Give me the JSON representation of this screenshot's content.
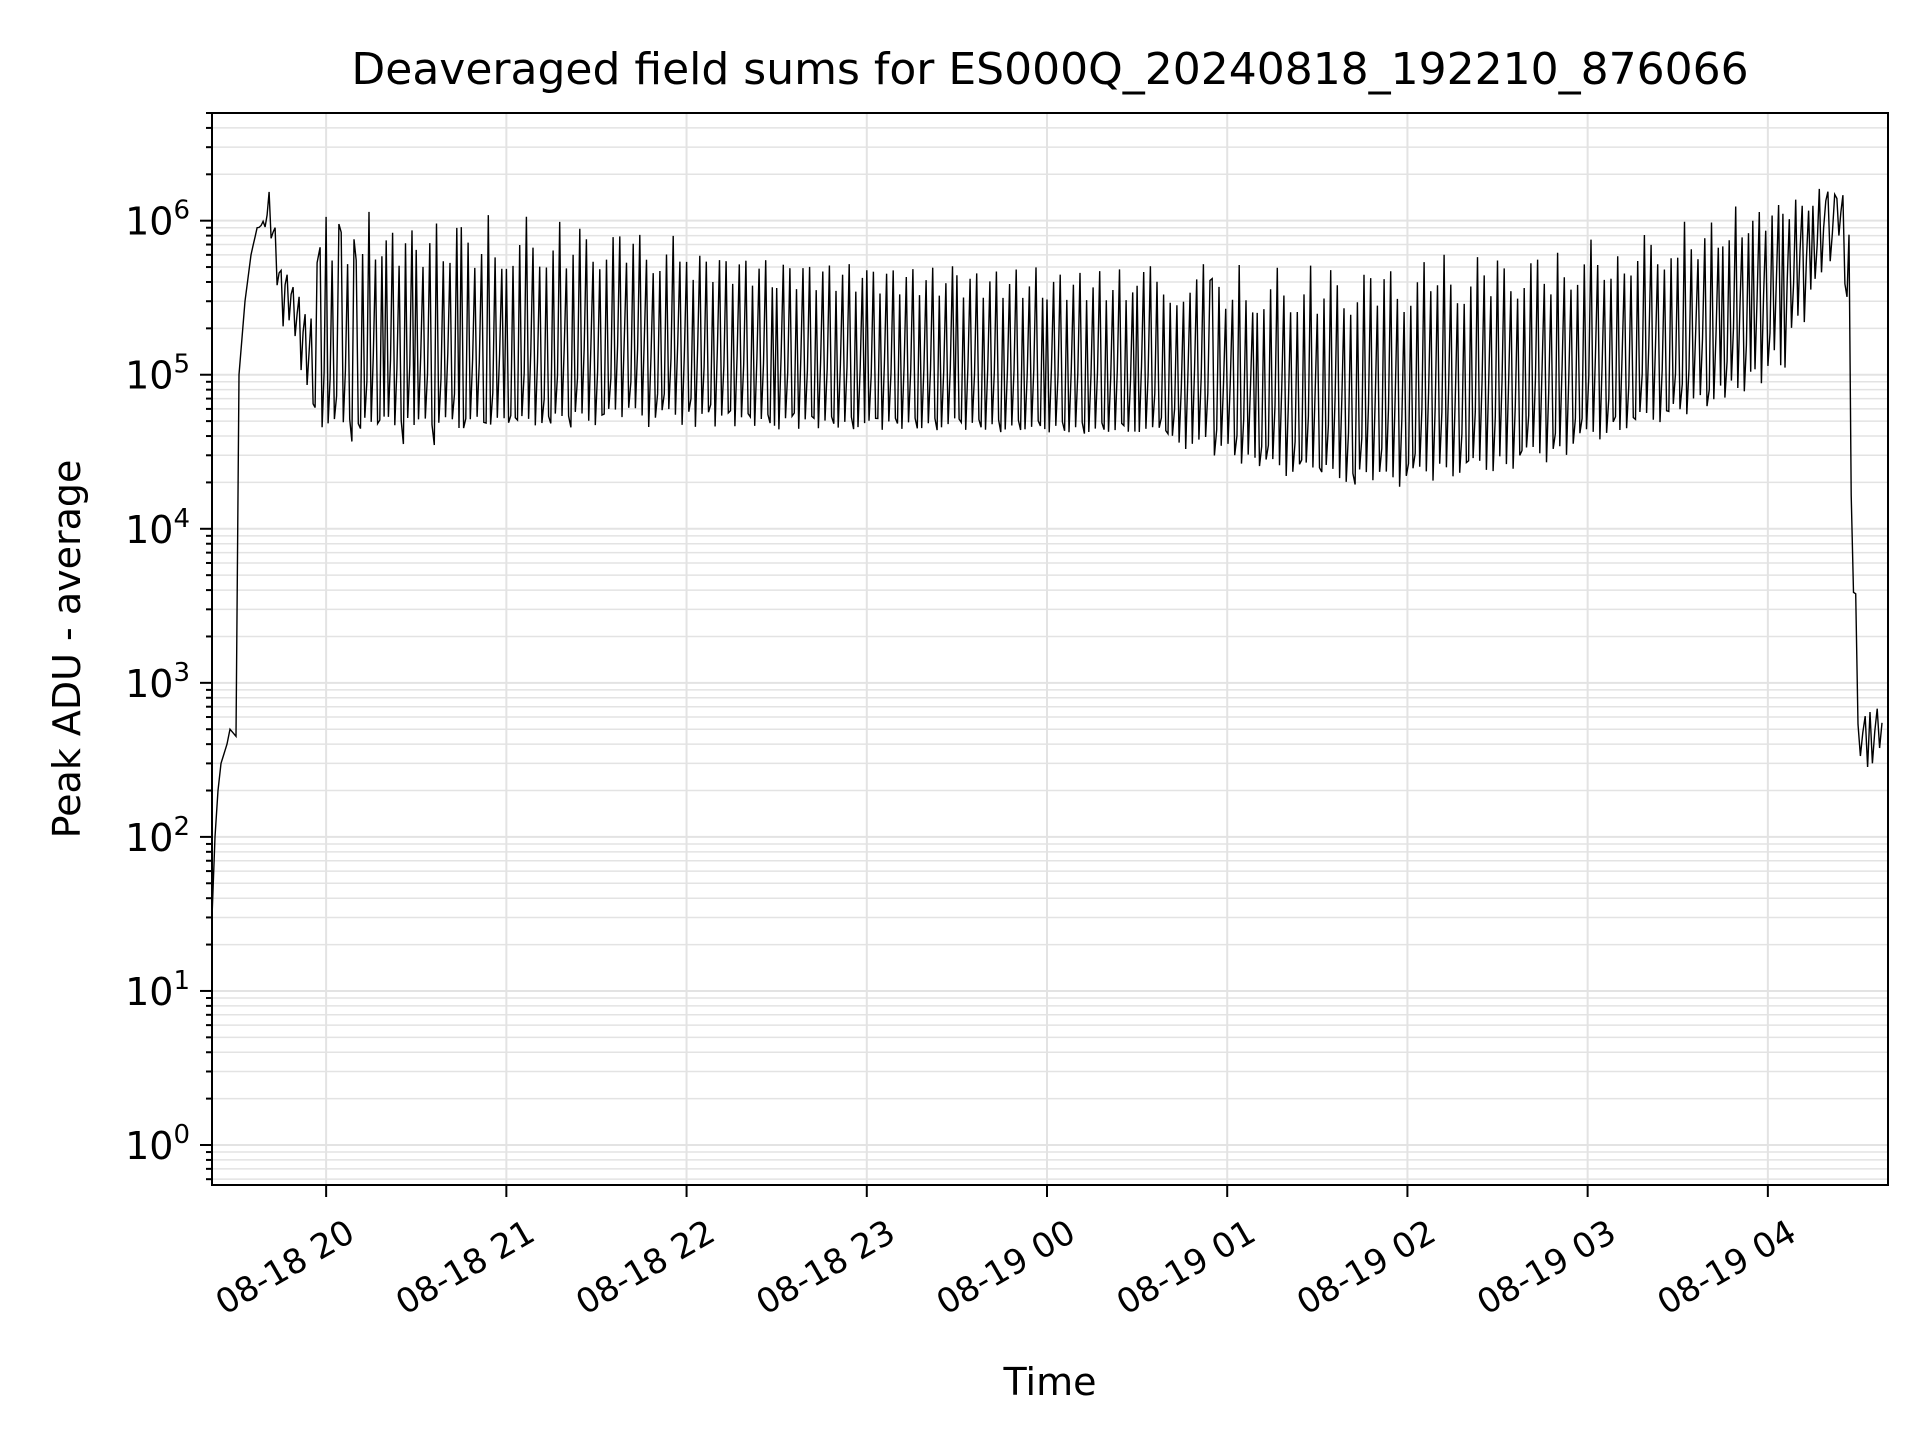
{
  "chart_data": {
    "type": "line",
    "title": "Deaveraged field sums for ES000Q_20240818_192210_876066",
    "xlabel": "Time",
    "ylabel": "Peak ADU - average",
    "yscale": "log",
    "ylim": [
      0.55,
      5000000
    ],
    "xlim": [
      "2024-08-18 19:22",
      "2024-08-19 04:40"
    ],
    "x_ticks": [
      {
        "label": "08-18 20",
        "value": "2024-08-18 20:00"
      },
      {
        "label": "08-18 21",
        "value": "2024-08-18 21:00"
      },
      {
        "label": "08-18 22",
        "value": "2024-08-18 22:00"
      },
      {
        "label": "08-18 23",
        "value": "2024-08-18 23:00"
      },
      {
        "label": "08-19 00",
        "value": "2024-08-19 00:00"
      },
      {
        "label": "08-19 01",
        "value": "2024-08-19 01:00"
      },
      {
        "label": "08-19 02",
        "value": "2024-08-19 02:00"
      },
      {
        "label": "08-19 03",
        "value": "2024-08-19 03:00"
      },
      {
        "label": "08-19 04",
        "value": "2024-08-19 04:00"
      }
    ],
    "y_ticks": [
      {
        "base": "10",
        "exp": "0",
        "value": 1
      },
      {
        "base": "10",
        "exp": "1",
        "value": 10
      },
      {
        "base": "10",
        "exp": "2",
        "value": 100
      },
      {
        "base": "10",
        "exp": "3",
        "value": 1000
      },
      {
        "base": "10",
        "exp": "4",
        "value": 10000
      },
      {
        "base": "10",
        "exp": "5",
        "value": 100000
      },
      {
        "base": "10",
        "exp": "6",
        "value": 1000000
      }
    ],
    "grid": true,
    "line_color": "#000000",
    "grid_color": "#e3e3e3",
    "series": [
      {
        "x": [
          "2024-08-18 19:22",
          "2024-08-18 19:22",
          "2024-08-18 19:23",
          "2024-08-18 19:24",
          "2024-08-18 19:25",
          "2024-08-18 19:27",
          "2024-08-18 19:28",
          "2024-08-18 19:30",
          "2024-08-18 19:31",
          "2024-08-18 19:33",
          "2024-08-18 19:35",
          "2024-08-18 19:37",
          "2024-08-18 19:39",
          "2024-08-18 19:41",
          "2024-08-18 19:43",
          "2024-08-18 19:45",
          "2024-08-18 19:47",
          "2024-08-18 19:49",
          "2024-08-18 19:51",
          "2024-08-18 19:53",
          "2024-08-18 19:55",
          "2024-08-18 19:57",
          "2024-08-18 19:58",
          "2024-08-18 20:00",
          "2024-08-18 20:02",
          "2024-08-18 20:05",
          "2024-08-18 20:10",
          "2024-08-18 20:20",
          "2024-08-18 20:30",
          "2024-08-18 20:45",
          "2024-08-18 21:00",
          "2024-08-18 21:20",
          "2024-08-18 21:40",
          "2024-08-18 22:00",
          "2024-08-18 22:30",
          "2024-08-18 23:00",
          "2024-08-18 23:30",
          "2024-08-19 00:00",
          "2024-08-19 00:30",
          "2024-08-19 00:55",
          "2024-08-19 01:10",
          "2024-08-19 01:30",
          "2024-08-19 01:50",
          "2024-08-19 02:10",
          "2024-08-19 02:30",
          "2024-08-19 02:50",
          "2024-08-19 03:10",
          "2024-08-19 03:30",
          "2024-08-19 03:45",
          "2024-08-19 03:55",
          "2024-08-19 04:05",
          "2024-08-19 04:15",
          "2024-08-19 04:20",
          "2024-08-19 04:23",
          "2024-08-19 04:25",
          "2024-08-19 04:27",
          "2024-08-19 04:30",
          "2024-08-19 04:34",
          "2024-08-19 04:38"
        ],
        "y": [
          1.1,
          30,
          100,
          200,
          300,
          400,
          500,
          450,
          100000,
          300000,
          600000,
          900000,
          950000,
          1050000,
          700000,
          400000,
          350000,
          300000,
          250000,
          150000,
          100000,
          70000,
          55000,
          50000,
          60000,
          70000,
          65000,
          70000,
          65000,
          70000,
          68000,
          80000,
          100000,
          90000,
          80000,
          75000,
          72000,
          70000,
          68000,
          60000,
          45000,
          40000,
          35000,
          40000,
          50000,
          60000,
          80000,
          100000,
          150000,
          200000,
          350000,
          600000,
          800000,
          1000000,
          1200000,
          80000,
          400,
          500,
          550
        ],
        "upper": [
          1.1,
          30,
          100,
          200,
          300,
          400,
          500,
          450,
          100000,
          300000,
          600000,
          900000,
          1000000,
          1600000,
          1000000,
          500000,
          450000,
          400000,
          350000,
          250000,
          300000,
          1200000,
          1300000,
          1300000,
          1300000,
          1250000,
          1250000,
          1200000,
          1200000,
          1150000,
          1100000,
          1050000,
          950000,
          800000,
          700000,
          650000,
          600000,
          580000,
          550000,
          520000,
          520000,
          530000,
          560000,
          600000,
          650000,
          700000,
          850000,
          1000000,
          1200000,
          1400000,
          1500000,
          1600000,
          1650000,
          1600000,
          1500000,
          1300000,
          600,
          700,
          700
        ],
        "lower": [
          1.1,
          30,
          100,
          200,
          300,
          400,
          500,
          450,
          100000,
          300000,
          600000,
          900000,
          900000,
          900000,
          400000,
          200000,
          200000,
          150000,
          120000,
          80000,
          55000,
          50000,
          45000,
          45000,
          47000,
          48000,
          45000,
          45000,
          45000,
          45000,
          45000,
          45000,
          45000,
          45000,
          43000,
          42000,
          42000,
          40000,
          38000,
          30000,
          22000,
          20000,
          18000,
          20000,
          22000,
          28000,
          40000,
          50000,
          60000,
          70000,
          100000,
          300000,
          500000,
          700000,
          900000,
          60000,
          300,
          250,
          350
        ]
      }
    ]
  }
}
